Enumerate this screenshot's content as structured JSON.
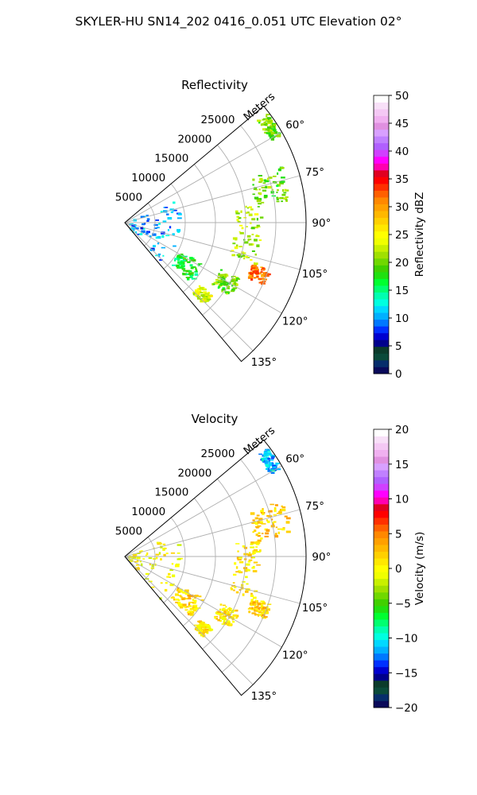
{
  "figure": {
    "suptitle": "SKYLER-HU  SN14_202  0416_0.051 UTC Elevation 02°"
  },
  "chart_data": [
    {
      "type": "polar-sector-scan",
      "title": "Reflectivity",
      "radial_label": "Meters",
      "r_max": 30000,
      "r_ticks": [
        5000,
        10000,
        15000,
        20000,
        25000
      ],
      "r_tick_labels": [
        "5000",
        "10000",
        "15000",
        "20000",
        "25000"
      ],
      "theta_range_deg": [
        50,
        140
      ],
      "theta_ticks": [
        60,
        75,
        90,
        105,
        120,
        135
      ],
      "theta_tick_labels": [
        "60°",
        "75°",
        "90°",
        "105°",
        "120°",
        "135°"
      ],
      "grid": true,
      "colorbar": {
        "label": "Reflectivity dBZ",
        "min": 0,
        "max": 50,
        "ticks": [
          0,
          5,
          10,
          15,
          20,
          25,
          30,
          35,
          40,
          45,
          50
        ],
        "tick_labels": [
          "0",
          "5",
          "10",
          "15",
          "20",
          "25",
          "30",
          "35",
          "40",
          "45",
          "50"
        ],
        "colors": [
          "#0a0a5a",
          "#062d6b",
          "#0a4a3a",
          "#0b3b2b",
          "#00008c",
          "#0000d0",
          "#0030ff",
          "#0078ff",
          "#00b0ff",
          "#00d8ff",
          "#00ffe0",
          "#00ffb0",
          "#00ff70",
          "#00ff30",
          "#20e010",
          "#40d000",
          "#70d800",
          "#a0e000",
          "#c8f000",
          "#f0ff00",
          "#ffff00",
          "#ffe800",
          "#ffd000",
          "#ffb800",
          "#ffa000",
          "#ff8800",
          "#ff6000",
          "#ff3000",
          "#ff0000",
          "#e00020",
          "#ff00b0",
          "#ff00ff",
          "#d040ff",
          "#b060ff",
          "#c080ff",
          "#d8a0ff",
          "#e090e0",
          "#f0b0f0",
          "#f4c8f4",
          "#f8e0f8",
          "#ffffff"
        ]
      },
      "echo_features": [
        {
          "azimuth_deg": [
            52,
            60
          ],
          "range_m": [
            27500,
            29500
          ],
          "value": 20
        },
        {
          "azimuth_deg": [
            70,
            82
          ],
          "range_m": [
            21500,
            27500
          ],
          "value": 20
        },
        {
          "azimuth_deg": [
            82,
            108
          ],
          "range_m": [
            18000,
            22500
          ],
          "value": 22
        },
        {
          "azimuth_deg": [
            108,
            114
          ],
          "range_m": [
            22000,
            25000
          ],
          "value": 31
        },
        {
          "azimuth_deg": [
            116,
            125
          ],
          "range_m": [
            17500,
            21000
          ],
          "value": 20
        },
        {
          "azimuth_deg": [
            118,
            132
          ],
          "range_m": [
            10000,
            14500
          ],
          "value": 17
        },
        {
          "azimuth_deg": [
            130,
            136
          ],
          "range_m": [
            16000,
            18500
          ],
          "value": 23
        },
        {
          "azimuth_deg": [
            65,
            140
          ],
          "range_m": [
            500,
            9000
          ],
          "value": 10
        }
      ]
    },
    {
      "type": "polar-sector-scan",
      "title": "Velocity",
      "radial_label": "Meters",
      "r_max": 30000,
      "r_ticks": [
        5000,
        10000,
        15000,
        20000,
        25000
      ],
      "r_tick_labels": [
        "5000",
        "10000",
        "15000",
        "20000",
        "25000"
      ],
      "theta_range_deg": [
        50,
        140
      ],
      "theta_ticks": [
        60,
        75,
        90,
        105,
        120,
        135
      ],
      "theta_tick_labels": [
        "60°",
        "75°",
        "90°",
        "105°",
        "120°",
        "135°"
      ],
      "grid": true,
      "colorbar": {
        "label": "Velocity (m/s)",
        "min": -20,
        "max": 20,
        "ticks": [
          -20,
          -15,
          -10,
          -5,
          0,
          5,
          10,
          15,
          20
        ],
        "tick_labels": [
          "−20",
          "−15",
          "−10",
          "−5",
          "0",
          "5",
          "10",
          "15",
          "20"
        ],
        "colors": [
          "#0a0a5a",
          "#062d6b",
          "#0a4a3a",
          "#0b3b2b",
          "#00008c",
          "#0000d0",
          "#0030ff",
          "#0078ff",
          "#00b0ff",
          "#00d8ff",
          "#00ffe0",
          "#00ffb0",
          "#00ff70",
          "#00ff30",
          "#20e010",
          "#40d000",
          "#70d800",
          "#a0e000",
          "#c8f000",
          "#f0ff00",
          "#ffff00",
          "#ffe800",
          "#ffd000",
          "#ffb800",
          "#ffa000",
          "#ff8800",
          "#ff6000",
          "#ff3000",
          "#ff0000",
          "#e00020",
          "#ff00b0",
          "#ff00ff",
          "#d040ff",
          "#b060ff",
          "#c080ff",
          "#d8a0ff",
          "#e090e0",
          "#f0b0f0",
          "#f4c8f4",
          "#f8e0f8",
          "#ffffff"
        ]
      },
      "echo_features": [
        {
          "azimuth_deg": [
            52,
            60
          ],
          "range_m": [
            27500,
            29500
          ],
          "value": -11
        },
        {
          "azimuth_deg": [
            70,
            82
          ],
          "range_m": [
            21500,
            27500
          ],
          "value": 2
        },
        {
          "azimuth_deg": [
            82,
            108
          ],
          "range_m": [
            18000,
            22500
          ],
          "value": 1
        },
        {
          "azimuth_deg": [
            108,
            114
          ],
          "range_m": [
            22000,
            25000
          ],
          "value": 2
        },
        {
          "azimuth_deg": [
            116,
            125
          ],
          "range_m": [
            17500,
            21000
          ],
          "value": 1
        },
        {
          "azimuth_deg": [
            118,
            132
          ],
          "range_m": [
            10000,
            14500
          ],
          "value": 2
        },
        {
          "azimuth_deg": [
            130,
            136
          ],
          "range_m": [
            16000,
            18500
          ],
          "value": 1
        },
        {
          "azimuth_deg": [
            65,
            140
          ],
          "range_m": [
            500,
            9000
          ],
          "value": 0
        }
      ]
    }
  ]
}
